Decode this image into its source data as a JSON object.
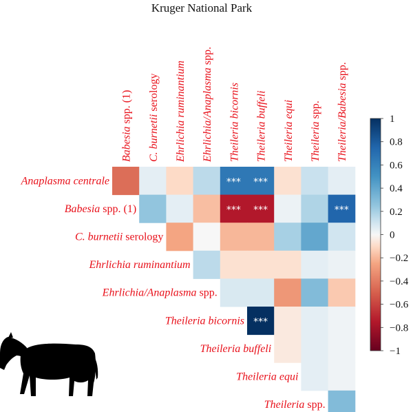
{
  "chart_data": {
    "type": "heatmap",
    "title": "Kruger National Park",
    "columns": [
      "Babesia spp. (1)",
      "C. burnetii serology",
      "Ehrlichia ruminantium",
      "Ehrlichia/Anaplasma spp.",
      "Theileria bicornis",
      "Theileria buffeli",
      "Theileria equi",
      "Theileria spp.",
      "Theileria/Babesia spp."
    ],
    "rows": [
      "Anaplasma centrale",
      "Babesia spp. (1)",
      "C. burnetii serology",
      "Ehrlichia ruminantium",
      "Ehrlichia/Anaplasma spp.",
      "Theileria bicornis",
      "Theileria buffeli",
      "Theileria equi",
      "Theileria spp."
    ],
    "values": [
      [
        -0.45,
        0.05,
        -0.1,
        0.15,
        0.65,
        0.65,
        -0.08,
        0.12,
        0.05
      ],
      [
        null,
        0.25,
        0.05,
        -0.18,
        -0.75,
        -0.75,
        0.03,
        0.18,
        0.75
      ],
      [
        null,
        null,
        -0.25,
        0.0,
        -0.2,
        -0.2,
        0.2,
        0.4,
        0.1
      ],
      [
        null,
        null,
        null,
        0.15,
        -0.08,
        -0.08,
        -0.08,
        0.05,
        0.03
      ],
      [
        null,
        null,
        null,
        null,
        0.08,
        0.08,
        -0.3,
        0.3,
        -0.15
      ],
      [
        null,
        null,
        null,
        null,
        null,
        1.0,
        -0.05,
        0.05,
        0.02
      ],
      [
        null,
        null,
        null,
        null,
        null,
        null,
        -0.05,
        0.05,
        0.02
      ],
      [
        null,
        null,
        null,
        null,
        null,
        null,
        null,
        0.05,
        0.02
      ],
      [
        null,
        null,
        null,
        null,
        null,
        null,
        null,
        null,
        0.3
      ]
    ],
    "significance": [
      [
        null,
        null,
        null,
        null,
        "***",
        "***",
        null,
        null,
        null
      ],
      [
        null,
        null,
        null,
        null,
        "***",
        "***",
        null,
        null,
        "***"
      ],
      [
        null,
        null,
        null,
        null,
        null,
        null,
        null,
        null,
        null
      ],
      [
        null,
        null,
        null,
        null,
        null,
        null,
        null,
        null,
        null
      ],
      [
        null,
        null,
        null,
        null,
        null,
        null,
        null,
        null,
        null
      ],
      [
        null,
        null,
        null,
        null,
        null,
        "***",
        null,
        null,
        null
      ],
      [
        null,
        null,
        null,
        null,
        null,
        null,
        null,
        null,
        null
      ],
      [
        null,
        null,
        null,
        null,
        null,
        null,
        null,
        null,
        null
      ],
      [
        null,
        null,
        null,
        null,
        null,
        null,
        null,
        null,
        null
      ]
    ],
    "colorbar": {
      "range": [
        -1,
        1
      ],
      "ticks": [
        1,
        0.8,
        0.6,
        0.4,
        0.2,
        0,
        -0.2,
        -0.4,
        -0.6,
        -0.8,
        -1
      ],
      "tick_labels": [
        "1",
        "0.8",
        "0.6",
        "0.4",
        "0.2",
        "0",
        "−0.2",
        "−0.4",
        "−0.6",
        "−0.8",
        "−1"
      ],
      "colors": {
        "negative": "#67001f",
        "neutral": "#f7f7f7",
        "positive": "#053061"
      }
    },
    "label_color": "#e8101a",
    "icon": "zebra-silhouette-icon"
  }
}
